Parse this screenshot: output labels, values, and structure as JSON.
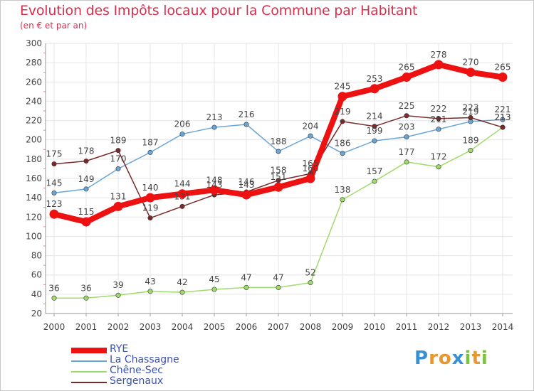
{
  "header": {
    "title": "Evolution des Impôts locaux pour la Commune par Habitant",
    "subtitle": "(en € et par an)"
  },
  "logo": {
    "letters": [
      "P",
      "r",
      "o",
      "x",
      "i",
      "t",
      "i"
    ],
    "colors": [
      "#3a8fd1",
      "#e8962e",
      "#e8962e",
      "#3a8fd1",
      "#7cc242",
      "#e8962e",
      "#7cc242"
    ]
  },
  "chart_data": {
    "type": "line",
    "title": "Evolution des Impôts locaux pour la Commune par Habitant",
    "subtitle": "(en € et par an)",
    "xlabel": "",
    "ylabel": "",
    "ylim": [
      20,
      300
    ],
    "yticks": [
      20,
      40,
      60,
      80,
      100,
      120,
      140,
      160,
      180,
      200,
      220,
      240,
      260,
      280,
      300
    ],
    "x": [
      "2000",
      "2001",
      "2002",
      "2003",
      "2004",
      "2005",
      "2006",
      "2007",
      "2008",
      "2009",
      "2010",
      "2011",
      "2012",
      "2013",
      "2014"
    ],
    "grid": true,
    "legend": "bottom-left",
    "series": [
      {
        "name": "RYE",
        "color": "#ee1111",
        "width": "thick",
        "values": [
          123,
          115,
          131,
          140,
          144,
          148,
          143,
          151,
          160,
          245,
          253,
          265,
          278,
          270,
          265
        ],
        "labels": [
          "123",
          "115",
          "131",
          "140",
          "144",
          "148",
          "143",
          "151",
          "160",
          "245",
          "253",
          "265",
          "278",
          "270",
          "265"
        ]
      },
      {
        "name": "La Chassagne",
        "color": "#6aa5d8",
        "width": "thin",
        "values": [
          145,
          149,
          170,
          187,
          206,
          213,
          216,
          188,
          204,
          186,
          199,
          203,
          211,
          219,
          221
        ],
        "labels": [
          "145",
          "149",
          "170",
          "187",
          "206",
          "213",
          "216",
          "188",
          "204",
          "186",
          "199",
          "203",
          "211",
          "219",
          "221"
        ]
      },
      {
        "name": "Chêne-Sec",
        "color": "#9fdb6a",
        "width": "thin",
        "values": [
          36,
          36,
          39,
          43,
          42,
          45,
          47,
          47,
          52,
          138,
          157,
          177,
          172,
          189,
          213
        ],
        "labels": [
          "36",
          "36",
          "39",
          "43",
          "42",
          "45",
          "47",
          "47",
          "52",
          "138",
          "157",
          "177",
          "172",
          "189",
          "213"
        ]
      },
      {
        "name": "Sergenaux",
        "color": "#7a2a2a",
        "width": "thin",
        "values": [
          175,
          178,
          189,
          119,
          131,
          143,
          146,
          158,
          165,
          219,
          214,
          225,
          222,
          223,
          213
        ],
        "labels": [
          "175",
          "178",
          "189",
          "119",
          "131",
          "143",
          "146",
          "158",
          "165",
          "219",
          "214",
          "225",
          "222",
          "223",
          "213"
        ]
      }
    ]
  }
}
